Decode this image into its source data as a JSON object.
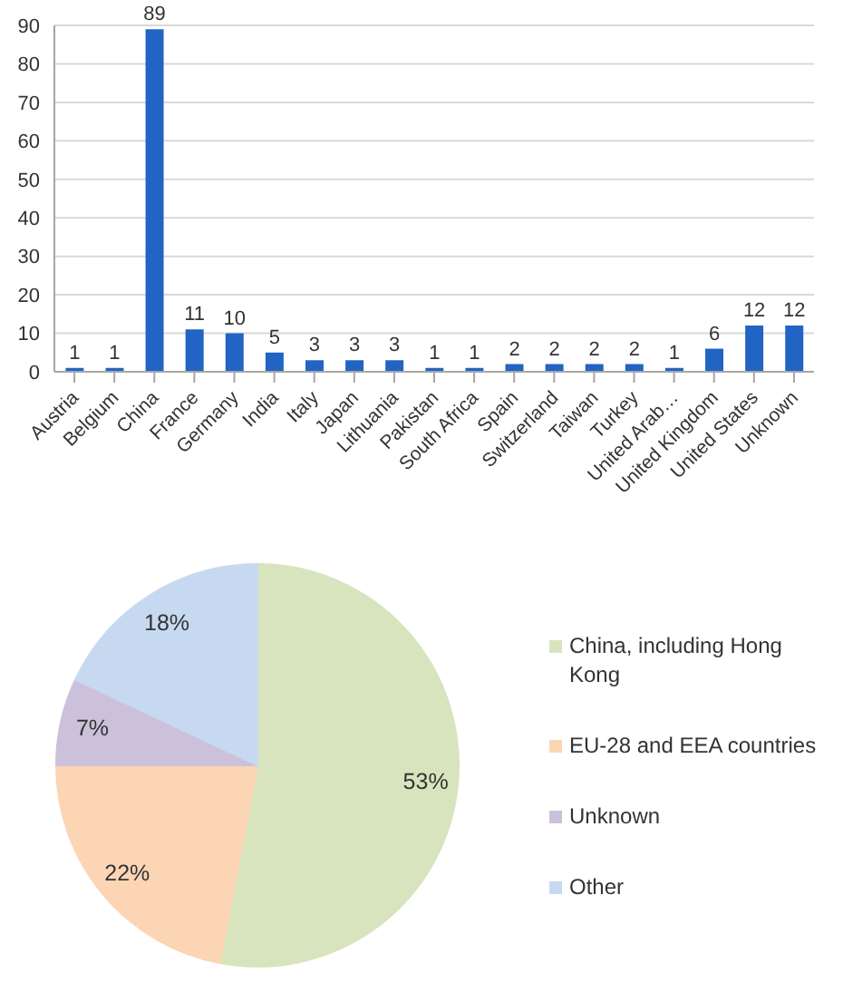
{
  "chart_data": [
    {
      "type": "bar",
      "categories": [
        "Austria",
        "Belgium",
        "China",
        "France",
        "Germany",
        "India",
        "Italy",
        "Japan",
        "Lithuania",
        "Pakistan",
        "South Africa",
        "Spain",
        "Switzerland",
        "Taiwan",
        "Turkey",
        "United Arab…",
        "United Kingdom",
        "United States",
        "Unknown"
      ],
      "values": [
        1,
        1,
        89,
        11,
        10,
        5,
        3,
        3,
        3,
        1,
        1,
        2,
        2,
        2,
        2,
        1,
        6,
        12,
        12
      ],
      "color": "#2164c4",
      "ylim": [
        0,
        90
      ],
      "yticks": [
        0,
        10,
        20,
        30,
        40,
        50,
        60,
        70,
        80,
        90
      ],
      "grid": "y",
      "data_labels": true
    },
    {
      "type": "pie",
      "categories": [
        "China, including Hong Kong",
        "EU-28 and EEA countries",
        "Unknown",
        "Other"
      ],
      "values": [
        53,
        22,
        7,
        18
      ],
      "colors": [
        "#d7e4bd",
        "#fcd5b5",
        "#ccc1da",
        "#c6d9f1"
      ],
      "value_labels": [
        "53%",
        "22%",
        "7%",
        "18%"
      ],
      "legend": "right"
    }
  ]
}
